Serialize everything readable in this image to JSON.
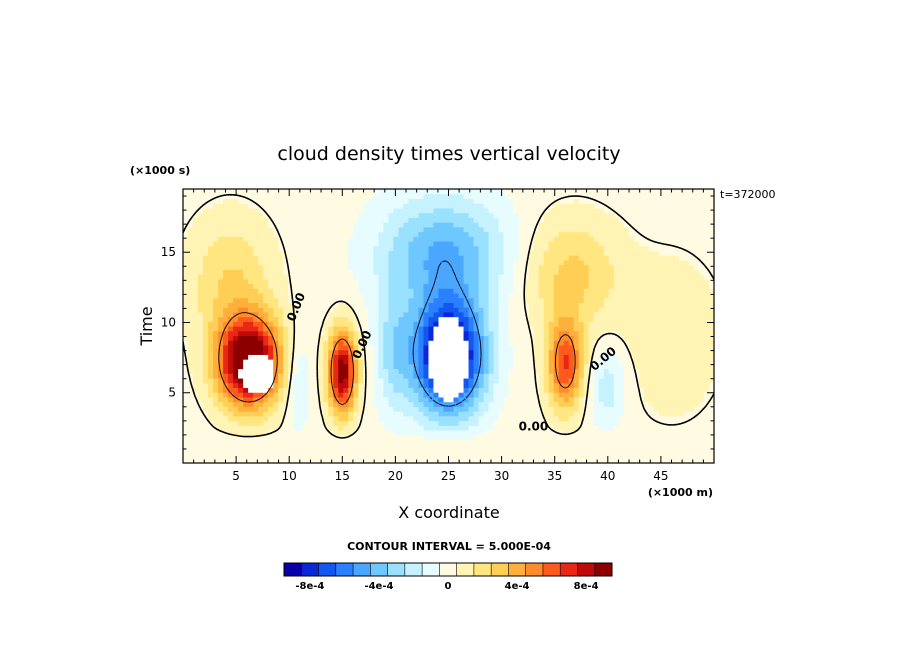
{
  "chart_data": {
    "type": "heatmap",
    "title": "cloud density times vertical velocity",
    "xlabel": "X coordinate",
    "ylabel": "Time",
    "x_units": "(×1000 m)",
    "y_units": "(×1000 s)",
    "time_label": "t=372000",
    "xlim": [
      0,
      50
    ],
    "ylim": [
      0,
      19.5
    ],
    "x_ticks": [
      5,
      10,
      15,
      20,
      25,
      30,
      35,
      40,
      45
    ],
    "x_tick_labels": [
      "5",
      "10",
      "15",
      "20",
      "25",
      "30",
      "35",
      "40",
      "45"
    ],
    "y_ticks": [
      5,
      10,
      15
    ],
    "y_tick_labels": [
      "5",
      "10",
      "15"
    ],
    "contour_interval_label": "CONTOUR INTERVAL = 5.000E-04",
    "zero_contour_labels": [
      "0.00",
      "0.00",
      "0.00",
      "0.00",
      "0.00"
    ],
    "colorbar": {
      "colors": [
        "#0a00a8",
        "#0a28d8",
        "#1456f0",
        "#2a80ff",
        "#4aa6ff",
        "#6ec8ff",
        "#9ae0ff",
        "#c6f2ff",
        "#e6fcff",
        "#fffbe2",
        "#fff4b4",
        "#ffe680",
        "#ffcf55",
        "#ffb03c",
        "#ff8c2a",
        "#ff5a1e",
        "#e82814",
        "#c00a0a",
        "#8c0000"
      ],
      "tick_labels": [
        "-8e-4",
        "-4e-4",
        "0",
        "4e-4",
        "8e-4"
      ],
      "tick_values": [
        -0.0008,
        -0.0004,
        0,
        0.0004,
        0.0008
      ],
      "vmin": -0.00095,
      "vmax": 0.00095
    },
    "features": [
      {
        "kind": "updraft",
        "x": 6.5,
        "y": 6.5,
        "peak": 0.001,
        "label": "strong positive core with missing values"
      },
      {
        "kind": "updraft",
        "x": 15.0,
        "y": 6.5,
        "peak": 0.00085
      },
      {
        "kind": "downdraft",
        "x": 25.0,
        "y": 7.5,
        "peak": -0.001,
        "label": "strong negative core with missing values"
      },
      {
        "kind": "updraft",
        "x": 36.0,
        "y": 7.0,
        "peak": 0.0006
      }
    ]
  }
}
